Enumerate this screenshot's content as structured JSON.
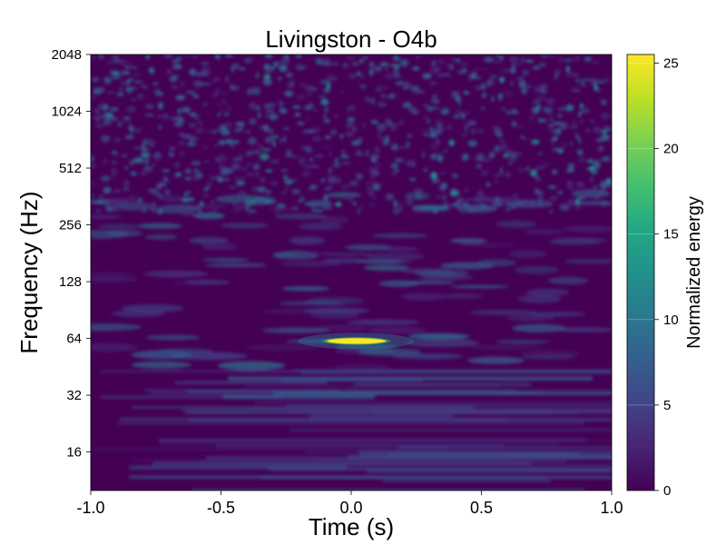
{
  "chart_data": {
    "type": "heatmap",
    "title": "Livingston - O4b",
    "xlabel": "Time (s)",
    "ylabel": "Frequency (Hz)",
    "xlim": [
      -1.0,
      1.0
    ],
    "ylim": [
      10,
      2048
    ],
    "yscale": "log2",
    "colormap": "viridis",
    "x_ticks": [
      "-1.0",
      "-0.5",
      "0.0",
      "0.5",
      "1.0"
    ],
    "x_tick_values": [
      -1.0,
      -0.5,
      0.0,
      0.5,
      1.0
    ],
    "y_ticks": [
      "16",
      "32",
      "64",
      "128",
      "256",
      "512",
      "1024",
      "2048"
    ],
    "y_tick_values": [
      16,
      32,
      64,
      128,
      256,
      512,
      1024,
      2048
    ],
    "colorbar": {
      "label": "Normalized energy",
      "range": [
        0,
        25.5
      ],
      "ticks": [
        "0",
        "5",
        "10",
        "15",
        "20",
        "25"
      ],
      "tick_values": [
        0,
        5,
        10,
        15,
        20,
        25
      ]
    },
    "features": [
      {
        "label": "",
        "time": 0.02,
        "frequency": 62,
        "energy": 25.5,
        "duration": 0.28
      }
    ]
  }
}
